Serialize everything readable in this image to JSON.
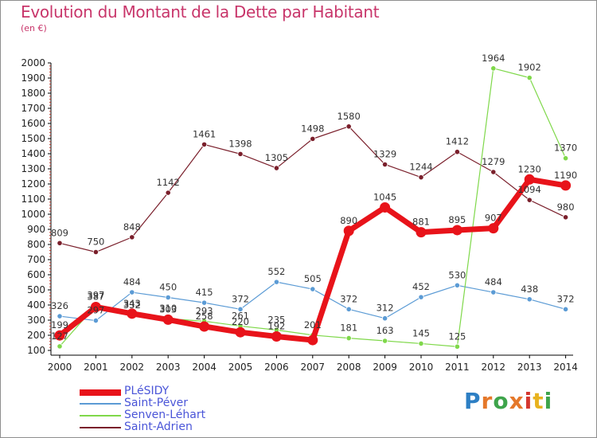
{
  "chart_data": {
    "type": "line",
    "title": "Evolution du Montant de la Dette par Habitant",
    "subtitle": "(en €)",
    "x": [
      "2000",
      "2001",
      "2002",
      "2003",
      "2004",
      "2005",
      "2006",
      "2007",
      "2008",
      "2009",
      "2010",
      "2011",
      "2012",
      "2013",
      "2014"
    ],
    "ylim": [
      100,
      2000
    ],
    "yticks": [
      100,
      200,
      300,
      400,
      500,
      600,
      700,
      800,
      900,
      1000,
      1100,
      1200,
      1300,
      1400,
      1500,
      1600,
      1700,
      1800,
      1900,
      2000
    ],
    "grid": false,
    "legend_position": "bottom-left",
    "series": [
      {
        "name": "Saint-Adrien",
        "color": "#7a1f2b",
        "values": [
          809,
          750,
          848,
          1142,
          1461,
          1398,
          1305,
          1498,
          1580,
          1329,
          1244,
          1412,
          1279,
          1094,
          980
        ],
        "labels": [
          "809",
          "750",
          "848",
          "1142",
          "1461",
          "1398",
          "1305",
          "1498",
          "1580",
          "1329",
          "1244",
          "1412",
          "1279",
          "1094",
          "980"
        ]
      },
      {
        "name": "Saint-Péver",
        "color": "#5b9bd5",
        "values": [
          326,
          297,
          484,
          450,
          415,
          372,
          552,
          505,
          372,
          312,
          452,
          530,
          484,
          438,
          372
        ],
        "labels": [
          "326",
          "297",
          "484",
          "450",
          "415",
          "372",
          "552",
          "505",
          "372",
          "312",
          "452",
          "530",
          "484",
          "438",
          "372"
        ]
      },
      {
        "name": "Senven-Léhart",
        "color": "#7fd84a",
        "values": [
          127,
          397,
          332,
          310,
          293,
          261,
          235,
          201,
          181,
          163,
          145,
          125,
          1964,
          1902,
          1370
        ],
        "labels": [
          "127",
          "397",
          "332",
          "310",
          "293",
          "261",
          "235",
          "201",
          "181",
          "163",
          "145",
          "125",
          "1964",
          "1902",
          "1370"
        ]
      },
      {
        "name": "PLéSIDY",
        "color": "#e8131a",
        "values": [
          199,
          387,
          343,
          303,
          258,
          220,
          192,
          168,
          890,
          1045,
          881,
          895,
          907,
          1230,
          1190
        ],
        "labels": [
          "199",
          "387",
          "343",
          "303",
          "258",
          "220",
          "192",
          "",
          "890",
          "1045",
          "881",
          "895",
          "907",
          "1230",
          "1190"
        ]
      }
    ],
    "legend": [
      "PLéSIDY",
      "Saint-Péver",
      "Senven-Léhart",
      "Saint-Adrien"
    ]
  },
  "brand": {
    "letters": [
      "P",
      "r",
      "o",
      "x",
      "i",
      "t",
      "i"
    ],
    "colors": [
      "#2d7fc4",
      "#e5782a",
      "#3ea44b",
      "#e5782a",
      "#d4372f",
      "#e8b21f",
      "#3ea44b"
    ]
  }
}
